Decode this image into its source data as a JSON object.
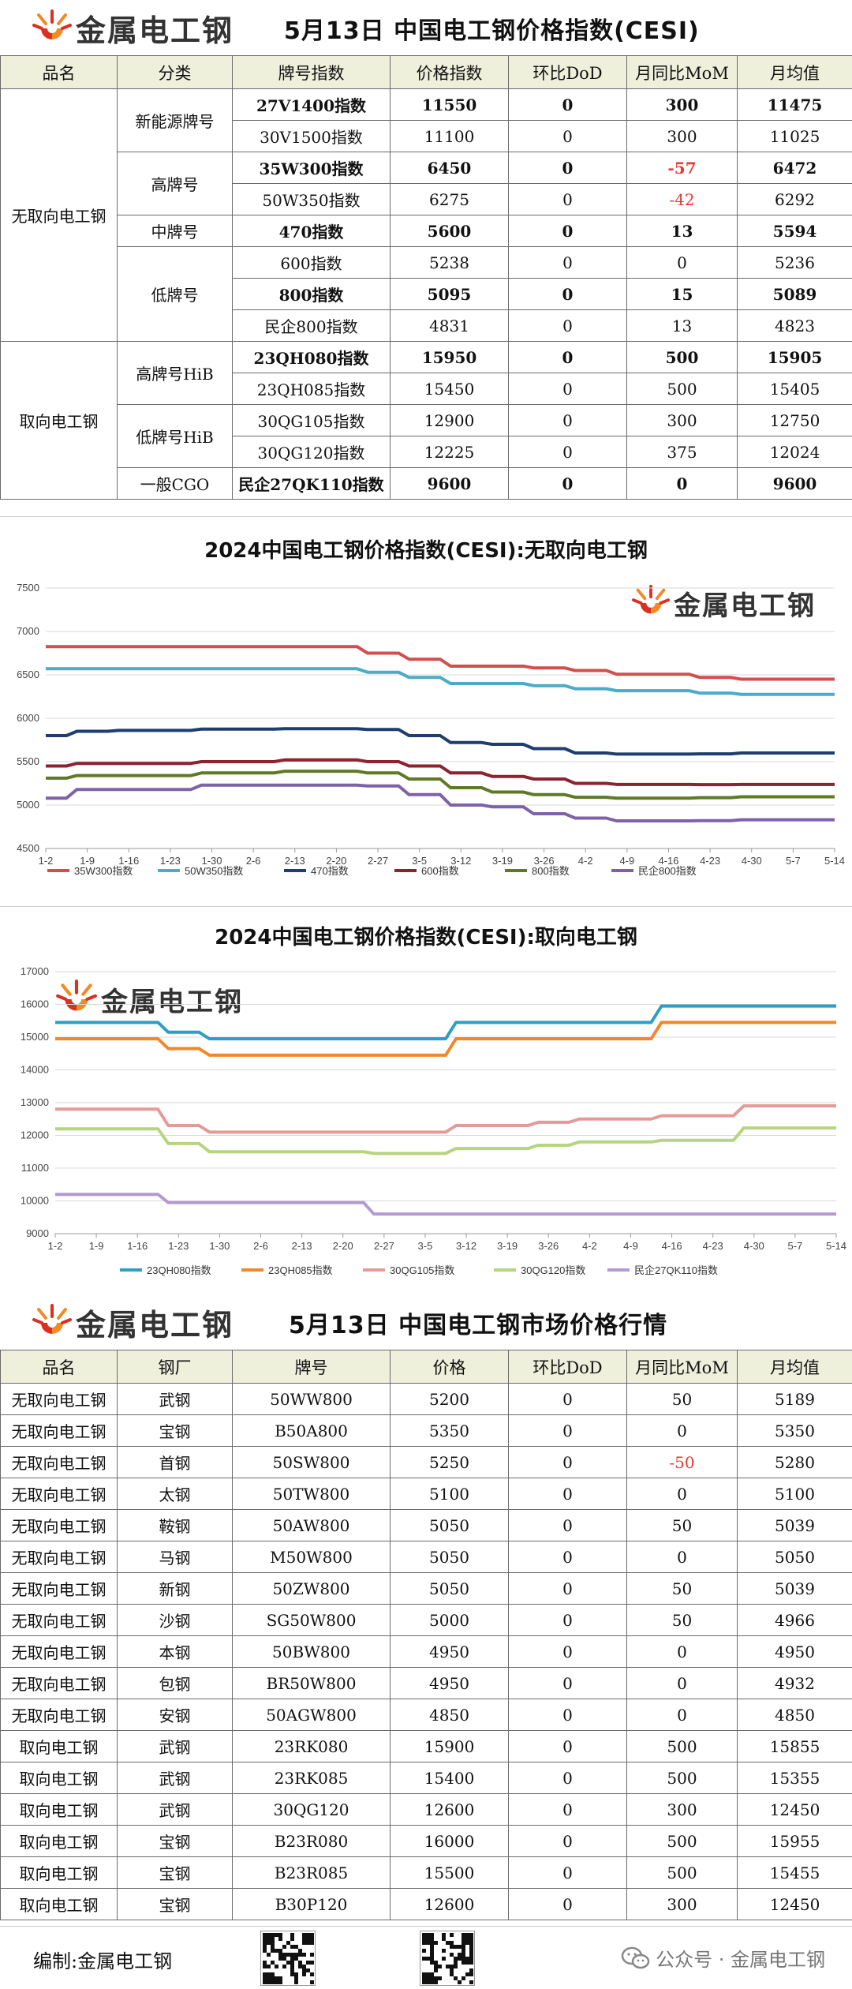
{
  "brand": {
    "logo_text": "金属电工钢"
  },
  "index_header": {
    "title": "5月13日 中国电工钢价格指数(CESI)"
  },
  "index_table": {
    "headers": [
      "品名",
      "分类",
      "牌号指数",
      "价格指数",
      "环比DoD",
      "月同比MoM",
      "月均值"
    ],
    "rows": [
      {
        "cat": "无取向电工钢",
        "sub": "新能源牌号",
        "name": "27V1400指数",
        "price": "11550",
        "dod": "0",
        "mom": "300",
        "avg": "11475",
        "bold": true,
        "neg": false
      },
      {
        "cat": "",
        "sub": "",
        "name": "30V1500指数",
        "price": "11100",
        "dod": "0",
        "mom": "300",
        "avg": "11025",
        "bold": false,
        "neg": false
      },
      {
        "cat": "",
        "sub": "高牌号",
        "name": "35W300指数",
        "price": "6450",
        "dod": "0",
        "mom": "-57",
        "avg": "6472",
        "bold": true,
        "neg": true
      },
      {
        "cat": "",
        "sub": "",
        "name": "50W350指数",
        "price": "6275",
        "dod": "0",
        "mom": "-42",
        "avg": "6292",
        "bold": false,
        "neg": true
      },
      {
        "cat": "",
        "sub": "中牌号",
        "name": "470指数",
        "price": "5600",
        "dod": "0",
        "mom": "13",
        "avg": "5594",
        "bold": true,
        "neg": false
      },
      {
        "cat": "",
        "sub": "低牌号",
        "name": "600指数",
        "price": "5238",
        "dod": "0",
        "mom": "0",
        "avg": "5236",
        "bold": false,
        "neg": false
      },
      {
        "cat": "",
        "sub": "",
        "name": "800指数",
        "price": "5095",
        "dod": "0",
        "mom": "15",
        "avg": "5089",
        "bold": true,
        "neg": false
      },
      {
        "cat": "",
        "sub": "",
        "name": "民企800指数",
        "price": "4831",
        "dod": "0",
        "mom": "13",
        "avg": "4823",
        "bold": false,
        "neg": false
      },
      {
        "cat": "取向电工钢",
        "sub": "高牌号HiB",
        "name": "23QH080指数",
        "price": "15950",
        "dod": "0",
        "mom": "500",
        "avg": "15905",
        "bold": true,
        "neg": false
      },
      {
        "cat": "",
        "sub": "",
        "name": "23QH085指数",
        "price": "15450",
        "dod": "0",
        "mom": "500",
        "avg": "15405",
        "bold": false,
        "neg": false
      },
      {
        "cat": "",
        "sub": "低牌号HiB",
        "name": "30QG105指数",
        "price": "12900",
        "dod": "0",
        "mom": "300",
        "avg": "12750",
        "bold": false,
        "neg": false
      },
      {
        "cat": "",
        "sub": "",
        "name": "30QG120指数",
        "price": "12225",
        "dod": "0",
        "mom": "375",
        "avg": "12024",
        "bold": false,
        "neg": false
      },
      {
        "cat": "",
        "sub": "一般CGO",
        "name": "民企27QK110指数",
        "price": "9600",
        "dod": "0",
        "mom": "0",
        "avg": "9600",
        "bold": true,
        "neg": false
      }
    ]
  },
  "chart_data": [
    {
      "type": "line",
      "title": "2024中国电工钢价格指数(CESI):无取向电工钢",
      "x": [
        "1-2",
        "1-9",
        "1-16",
        "1-23",
        "1-30",
        "2-6",
        "2-13",
        "2-20",
        "2-27",
        "3-5",
        "3-12",
        "3-19",
        "3-26",
        "4-2",
        "4-9",
        "4-16",
        "4-23",
        "4-30",
        "5-7",
        "5-14"
      ],
      "ylim": [
        4500,
        7500
      ],
      "yticks": [
        4500,
        5000,
        5500,
        6000,
        6500,
        7000,
        7500
      ],
      "grid": true,
      "legend_position": "bottom",
      "series": [
        {
          "name": "35W300指数",
          "color": "#d0504f",
          "values": [
            6825,
            6825,
            6825,
            6825,
            6825,
            6825,
            6825,
            6825,
            6750,
            6680,
            6600,
            6600,
            6580,
            6550,
            6507,
            6507,
            6470,
            6450,
            6450,
            6450
          ]
        },
        {
          "name": "50W350指数",
          "color": "#4bacc6",
          "values": [
            6570,
            6570,
            6570,
            6570,
            6570,
            6570,
            6570,
            6570,
            6530,
            6470,
            6400,
            6400,
            6375,
            6340,
            6317,
            6317,
            6290,
            6275,
            6275,
            6275
          ]
        },
        {
          "name": "470指数",
          "color": "#1f3d6e",
          "values": [
            5800,
            5850,
            5860,
            5860,
            5875,
            5875,
            5880,
            5880,
            5870,
            5800,
            5720,
            5700,
            5650,
            5600,
            5587,
            5587,
            5590,
            5600,
            5600,
            5600
          ]
        },
        {
          "name": "600指数",
          "color": "#8b2331",
          "values": [
            5450,
            5480,
            5480,
            5480,
            5500,
            5500,
            5520,
            5520,
            5500,
            5450,
            5370,
            5330,
            5300,
            5250,
            5238,
            5238,
            5235,
            5238,
            5238,
            5238
          ]
        },
        {
          "name": "800指数",
          "color": "#5f7a25",
          "values": [
            5310,
            5340,
            5340,
            5340,
            5370,
            5370,
            5390,
            5390,
            5370,
            5300,
            5200,
            5150,
            5120,
            5090,
            5080,
            5080,
            5085,
            5095,
            5095,
            5095
          ]
        },
        {
          "name": "民企800指数",
          "color": "#7e62a8",
          "values": [
            5080,
            5180,
            5180,
            5180,
            5230,
            5230,
            5230,
            5230,
            5220,
            5120,
            5000,
            4980,
            4900,
            4850,
            4818,
            4818,
            4820,
            4831,
            4831,
            4831
          ]
        }
      ]
    },
    {
      "type": "line",
      "title": "2024中国电工钢价格指数(CESI):取向电工钢",
      "x": [
        "1-2",
        "1-9",
        "1-16",
        "1-23",
        "1-30",
        "2-6",
        "2-13",
        "2-20",
        "2-27",
        "3-5",
        "3-12",
        "3-19",
        "3-26",
        "4-2",
        "4-9",
        "4-16",
        "4-23",
        "4-30",
        "5-7",
        "5-14"
      ],
      "ylim": [
        9000,
        17000
      ],
      "yticks": [
        9000,
        10000,
        11000,
        12000,
        13000,
        14000,
        15000,
        16000,
        17000
      ],
      "grid": true,
      "legend_position": "bottom",
      "series": [
        {
          "name": "23QH080指数",
          "color": "#2e9ec2",
          "values": [
            15450,
            15450,
            15450,
            15150,
            14950,
            14950,
            14950,
            14950,
            14950,
            14950,
            15450,
            15450,
            15450,
            15450,
            15450,
            15950,
            15950,
            15950,
            15950,
            15950
          ]
        },
        {
          "name": "23QH085指数",
          "color": "#f0882b",
          "values": [
            14950,
            14950,
            14950,
            14650,
            14450,
            14450,
            14450,
            14450,
            14450,
            14450,
            14950,
            14950,
            14950,
            14950,
            14950,
            15450,
            15450,
            15450,
            15450,
            15450
          ]
        },
        {
          "name": "30QG105指数",
          "color": "#e59a9a",
          "values": [
            12800,
            12800,
            12800,
            12300,
            12100,
            12100,
            12100,
            12100,
            12100,
            12100,
            12300,
            12300,
            12400,
            12500,
            12500,
            12600,
            12600,
            12900,
            12900,
            12900
          ]
        },
        {
          "name": "30QG120指数",
          "color": "#b7d47e",
          "values": [
            12200,
            12200,
            12200,
            11750,
            11500,
            11500,
            11500,
            11500,
            11450,
            11450,
            11600,
            11600,
            11700,
            11800,
            11800,
            11850,
            11850,
            12225,
            12225,
            12225
          ]
        },
        {
          "name": "民企27QK110指数",
          "color": "#b49ad2",
          "values": [
            10200,
            10200,
            10200,
            9950,
            9950,
            9950,
            9950,
            9950,
            9600,
            9600,
            9600,
            9600,
            9600,
            9600,
            9600,
            9600,
            9600,
            9600,
            9600,
            9600
          ]
        }
      ]
    }
  ],
  "market_header": {
    "title": "5月13日 中国电工钢市场价格行情"
  },
  "market_table": {
    "headers": [
      "品名",
      "钢厂",
      "牌号",
      "价格",
      "环比DoD",
      "月同比MoM",
      "月均值"
    ],
    "rows": [
      {
        "cat": "无取向电工钢",
        "mill": "武钢",
        "grade": "50WW800",
        "price": "5200",
        "dod": "0",
        "mom": "50",
        "avg": "5189",
        "neg": false
      },
      {
        "cat": "无取向电工钢",
        "mill": "宝钢",
        "grade": "B50A800",
        "price": "5350",
        "dod": "0",
        "mom": "0",
        "avg": "5350",
        "neg": false
      },
      {
        "cat": "无取向电工钢",
        "mill": "首钢",
        "grade": "50SW800",
        "price": "5250",
        "dod": "0",
        "mom": "-50",
        "avg": "5280",
        "neg": true
      },
      {
        "cat": "无取向电工钢",
        "mill": "太钢",
        "grade": "50TW800",
        "price": "5100",
        "dod": "0",
        "mom": "0",
        "avg": "5100",
        "neg": false
      },
      {
        "cat": "无取向电工钢",
        "mill": "鞍钢",
        "grade": "50AW800",
        "price": "5050",
        "dod": "0",
        "mom": "50",
        "avg": "5039",
        "neg": false
      },
      {
        "cat": "无取向电工钢",
        "mill": "马钢",
        "grade": "M50W800",
        "price": "5050",
        "dod": "0",
        "mom": "0",
        "avg": "5050",
        "neg": false
      },
      {
        "cat": "无取向电工钢",
        "mill": "新钢",
        "grade": "50ZW800",
        "price": "5050",
        "dod": "0",
        "mom": "50",
        "avg": "5039",
        "neg": false
      },
      {
        "cat": "无取向电工钢",
        "mill": "沙钢",
        "grade": "SG50W800",
        "price": "5000",
        "dod": "0",
        "mom": "50",
        "avg": "4966",
        "neg": false
      },
      {
        "cat": "无取向电工钢",
        "mill": "本钢",
        "grade": "50BW800",
        "price": "4950",
        "dod": "0",
        "mom": "0",
        "avg": "4950",
        "neg": false
      },
      {
        "cat": "无取向电工钢",
        "mill": "包钢",
        "grade": "BR50W800",
        "price": "4950",
        "dod": "0",
        "mom": "0",
        "avg": "4932",
        "neg": false
      },
      {
        "cat": "无取向电工钢",
        "mill": "安钢",
        "grade": "50AGW800",
        "price": "4850",
        "dod": "0",
        "mom": "0",
        "avg": "4850",
        "neg": false
      },
      {
        "cat": "取向电工钢",
        "mill": "武钢",
        "grade": "23RK080",
        "price": "15900",
        "dod": "0",
        "mom": "500",
        "avg": "15855",
        "neg": false
      },
      {
        "cat": "取向电工钢",
        "mill": "武钢",
        "grade": "23RK085",
        "price": "15400",
        "dod": "0",
        "mom": "500",
        "avg": "15355",
        "neg": false
      },
      {
        "cat": "取向电工钢",
        "mill": "武钢",
        "grade": "30QG120",
        "price": "12600",
        "dod": "0",
        "mom": "300",
        "avg": "12450",
        "neg": false
      },
      {
        "cat": "取向电工钢",
        "mill": "宝钢",
        "grade": "B23R080",
        "price": "16000",
        "dod": "0",
        "mom": "500",
        "avg": "15955",
        "neg": false
      },
      {
        "cat": "取向电工钢",
        "mill": "宝钢",
        "grade": "B23R085",
        "price": "15500",
        "dod": "0",
        "mom": "500",
        "avg": "15455",
        "neg": false
      },
      {
        "cat": "取向电工钢",
        "mill": "宝钢",
        "grade": "B30P120",
        "price": "12600",
        "dod": "0",
        "mom": "300",
        "avg": "12450",
        "neg": false
      }
    ]
  },
  "footer": {
    "editor": "编制:金属电工钢",
    "account": "公众号 · 金属电工钢"
  },
  "colors": {
    "header_bg": "#eef0dc",
    "negative": "#e53935",
    "logo_red": "#d9301f",
    "logo_orange": "#f08a24"
  }
}
